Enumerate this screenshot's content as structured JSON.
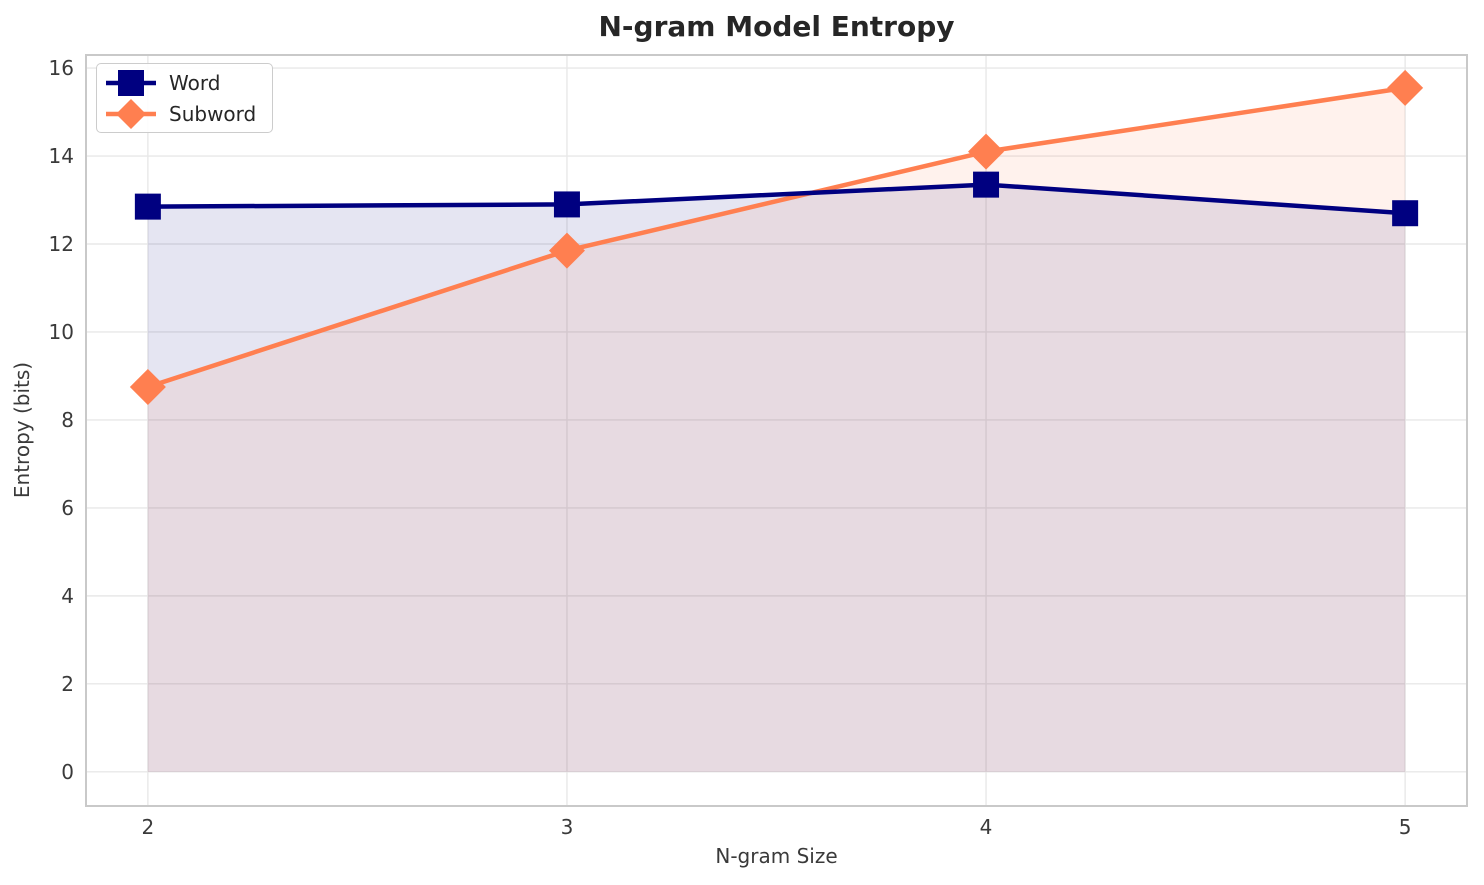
{
  "chart_data": {
    "type": "line",
    "title": "N-gram Model Entropy",
    "xlabel": "N-gram Size",
    "ylabel": "Entropy (bits)",
    "x": [
      2,
      3,
      4,
      5
    ],
    "series": [
      {
        "name": "Word",
        "values": [
          12.85,
          12.9,
          13.35,
          12.7
        ],
        "color": "#000080",
        "marker": "square",
        "area_fill": true,
        "fill_opacity": 0.1
      },
      {
        "name": "Subword",
        "values": [
          8.75,
          11.85,
          14.1,
          15.55
        ],
        "color": "#FF7F50",
        "marker": "diamond",
        "area_fill": true,
        "fill_opacity": 0.1
      }
    ],
    "xticks": [
      2,
      3,
      4,
      5
    ],
    "yticks": [
      0,
      2,
      4,
      6,
      8,
      10,
      12,
      14,
      16
    ],
    "xlim": [
      1.85,
      5.15
    ],
    "ylim": [
      -0.8,
      16.32
    ],
    "fill_baseline": 0,
    "grid": true,
    "legend_position": "upper left"
  },
  "colors": {
    "background": "#FFFFFF",
    "grid": "#E8E8E8",
    "spine": "#C9C9C9",
    "title_text": "#262626",
    "tick_text": "#3A3A3A"
  }
}
